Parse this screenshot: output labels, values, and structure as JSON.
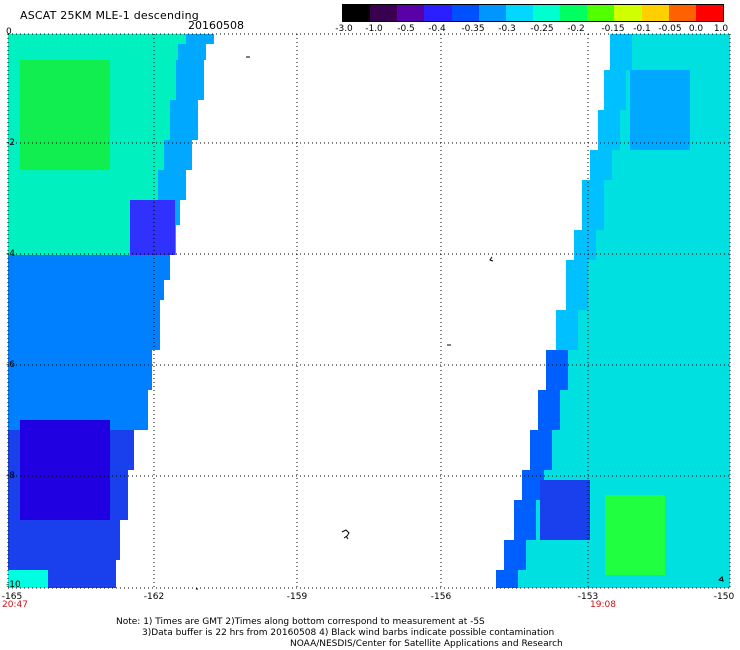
{
  "header": {
    "title": "ASCAT 25KM MLE-1 descending",
    "date": "20160508"
  },
  "colorbar": {
    "labels": [
      "-3.0",
      "-1.0",
      "-0.5",
      "-0.4",
      "-0.35",
      "-0.3",
      "-0.25",
      "-0.2",
      "-0.15",
      "-0.1",
      "-0.05",
      "0.0",
      "1.0"
    ],
    "colors": [
      "#000000",
      "#3a0050",
      "#5a00a8",
      "#2a20ff",
      "#0050ff",
      "#0096ff",
      "#00d8ff",
      "#00ffd0",
      "#00ff60",
      "#50ff00",
      "#d0ff00",
      "#ffd000",
      "#ff6000",
      "#ff0000"
    ]
  },
  "map": {
    "x_axis_labels": [
      "-165",
      "-162",
      "-159",
      "-156",
      "-153",
      "-150"
    ],
    "y_axis_labels": [
      "0",
      "-2",
      "-4",
      "-6",
      "-8",
      "-10"
    ],
    "lon_range": [
      -165,
      -150
    ],
    "lat_range": [
      0,
      -10
    ],
    "grid": "dotted"
  },
  "times": {
    "left": "20:47",
    "right": "19:08"
  },
  "notes": {
    "line1": "Note: 1) Times are GMT 2)Times along bottom correspond to measurement at -5S",
    "line2": "3)Data buffer is 22 hrs from 20160508 4) Black wind barbs indicate possible contamination",
    "line3": "NOAA/NESDIS/Center for Satellite Applications and Research"
  }
}
